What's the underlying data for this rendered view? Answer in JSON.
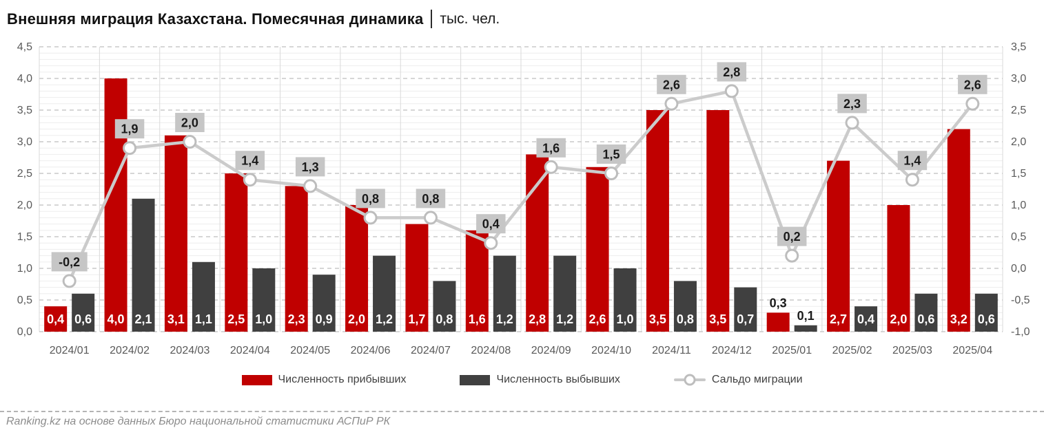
{
  "title": {
    "main": "Внешняя миграция Казахстана. Помесячная динамика",
    "unit": "тыс. чел."
  },
  "footer": {
    "source": "Ranking.kz на основе данных Бюро национальной статистики АСПиР РК"
  },
  "colors": {
    "arrivals_bar": "#c00000",
    "departures_bar": "#404040",
    "saldo_line": "#cbcbcb",
    "saldo_marker_fill": "#ffffff",
    "saldo_marker_stroke": "#bdbdbd",
    "saldo_label_bg": "#c6c6c6",
    "axis_text": "#595959",
    "grid_major": "#c9c9c9",
    "grid_minor": "#ededed",
    "grid_vertical": "#dadada"
  },
  "chart_data": {
    "type": "bar+line",
    "categories": [
      "2024/01",
      "2024/02",
      "2024/03",
      "2024/04",
      "2024/05",
      "2024/06",
      "2024/07",
      "2024/08",
      "2024/09",
      "2024/10",
      "2024/11",
      "2024/12",
      "2025/01",
      "2025/02",
      "2025/03",
      "2025/04"
    ],
    "series": [
      {
        "name": "Численность прибывших",
        "type": "bar",
        "axis": "left",
        "color": "#c00000",
        "values": [
          0.4,
          4.0,
          3.1,
          2.5,
          2.3,
          2.0,
          1.7,
          1.6,
          2.8,
          2.6,
          3.5,
          3.5,
          0.3,
          2.7,
          2.0,
          3.2
        ],
        "labels": [
          "0,4",
          "4,0",
          "3,1",
          "2,5",
          "2,3",
          "2,0",
          "1,7",
          "1,6",
          "2,8",
          "2,6",
          "3,5",
          "3,5",
          "0,3",
          "2,7",
          "2,0",
          "3,2"
        ]
      },
      {
        "name": "Численность выбывших",
        "type": "bar",
        "axis": "left",
        "color": "#404040",
        "values": [
          0.6,
          2.1,
          1.1,
          1.0,
          0.9,
          1.2,
          0.8,
          1.2,
          1.2,
          1.0,
          0.8,
          0.7,
          0.1,
          0.4,
          0.6,
          0.6
        ],
        "labels": [
          "0,6",
          "2,1",
          "1,1",
          "1,0",
          "0,9",
          "1,2",
          "0,8",
          "1,2",
          "1,2",
          "1,0",
          "0,8",
          "0,7",
          "0,1",
          "0,4",
          "0,6",
          "0,6"
        ]
      },
      {
        "name": "Сальдо миграции",
        "type": "line",
        "axis": "right",
        "color": "#cbcbcb",
        "values": [
          -0.2,
          1.9,
          2.0,
          1.4,
          1.3,
          0.8,
          0.8,
          0.4,
          1.6,
          1.5,
          2.6,
          2.8,
          0.2,
          2.3,
          1.4,
          2.6
        ],
        "labels": [
          "-0,2",
          "1,9",
          "2,0",
          "1,4",
          "1,3",
          "0,8",
          "0,8",
          "0,4",
          "1,6",
          "1,5",
          "2,6",
          "2,8",
          "0,2",
          "2,3",
          "1,4",
          "2,6"
        ]
      }
    ],
    "left_axis": {
      "min": 0,
      "max": 4.5,
      "ticks": [
        "0,0",
        "0,5",
        "1,0",
        "1,5",
        "2,0",
        "2,5",
        "3,0",
        "3,5",
        "4,0",
        "4,5"
      ]
    },
    "right_axis": {
      "min": -1,
      "max": 3.5,
      "ticks": [
        "-1,0",
        "-0,5",
        "0,0",
        "0,5",
        "1,0",
        "1,5",
        "2,0",
        "2,5",
        "3,0",
        "3,5"
      ]
    },
    "grid": true,
    "legend_position": "bottom"
  }
}
